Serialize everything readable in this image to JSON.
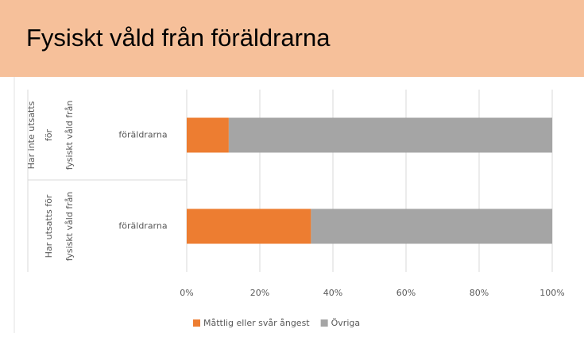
{
  "header": {
    "title": "Fysiskt våld från föräldrarna"
  },
  "chart_data": {
    "type": "stacked-bar-horizontal",
    "categories": [
      "föräldrarna",
      "föräldrarna"
    ],
    "groups": [
      [
        "Har inte utsatts",
        "för",
        "fysiskt våld från"
      ],
      [
        "Har utsatts för",
        "fysiskt våld från"
      ]
    ],
    "series": [
      {
        "name": "Måttlig eller svår ångest",
        "color": "#ed7d31",
        "values": [
          11.5,
          34
        ]
      },
      {
        "name": "Övriga",
        "color": "#a5a5a5",
        "values": [
          88.5,
          66
        ]
      }
    ],
    "xlim": [
      0,
      100
    ],
    "xticks": [
      {
        "value": 0,
        "label": "0%"
      },
      {
        "value": 20,
        "label": "20%"
      },
      {
        "value": 40,
        "label": "40%"
      },
      {
        "value": 60,
        "label": "60%"
      },
      {
        "value": 80,
        "label": "80%"
      },
      {
        "value": 100,
        "label": "100%"
      }
    ],
    "grid": true,
    "legend": "bottom"
  }
}
